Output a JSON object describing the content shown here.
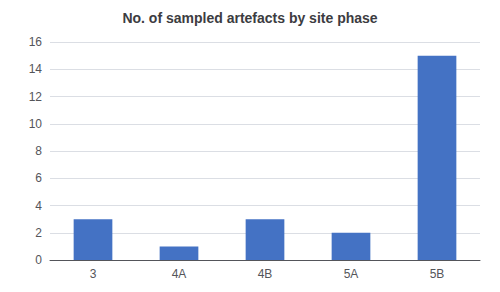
{
  "chart_data": {
    "type": "bar",
    "title": "No. of sampled artefacts by site phase",
    "categories": [
      "3",
      "4A",
      "4B",
      "5A",
      "5B"
    ],
    "values": [
      3,
      1,
      3,
      2,
      15
    ],
    "color": "#4472c4",
    "ylim": [
      0,
      16
    ],
    "yticks": [
      0,
      2,
      4,
      6,
      8,
      10,
      12,
      14,
      16
    ],
    "grid": true
  }
}
